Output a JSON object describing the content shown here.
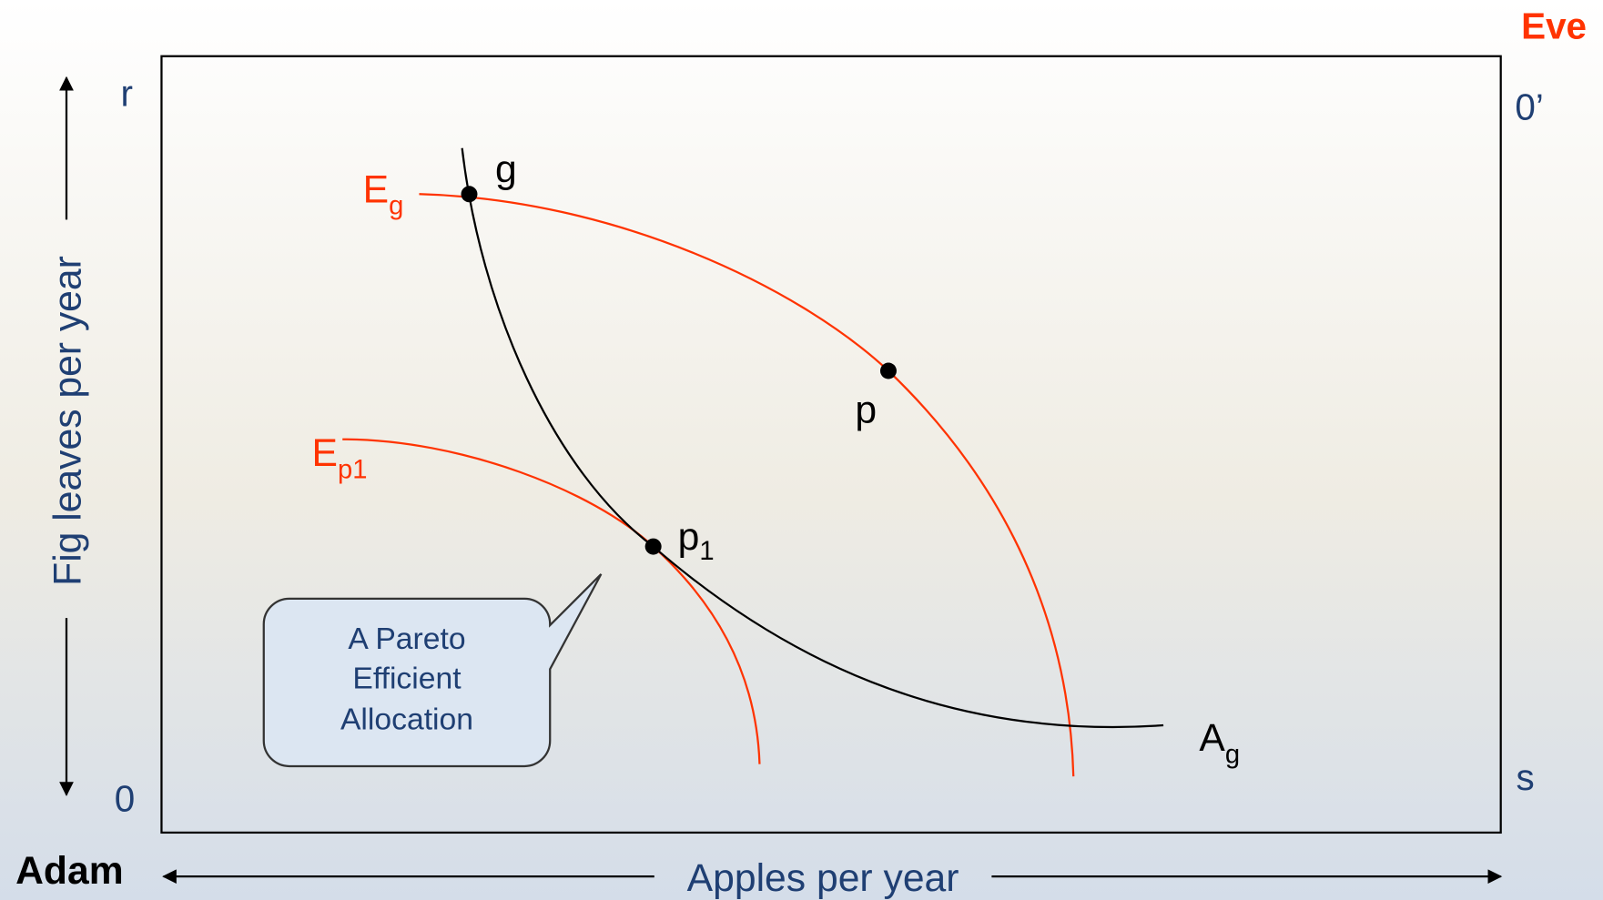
{
  "corners": {
    "top_right_owner": "Eve",
    "top_right_origin": "0’",
    "top_left": "r",
    "bottom_left_origin": "0",
    "bottom_right": "s",
    "bottom_left_owner": "Adam"
  },
  "axes": {
    "x": "Apples per year",
    "y": "Fig leaves per year"
  },
  "points": [
    {
      "label": "g"
    },
    {
      "label": "p"
    },
    {
      "label": "p",
      "sub": "1"
    }
  ],
  "curves": [
    {
      "label": "E",
      "sub": "g"
    },
    {
      "label": "E",
      "sub": "p1"
    },
    {
      "label": "A",
      "sub": "g"
    }
  ],
  "callout": [
    "A Pareto",
    "Efficient",
    "Allocation"
  ]
}
